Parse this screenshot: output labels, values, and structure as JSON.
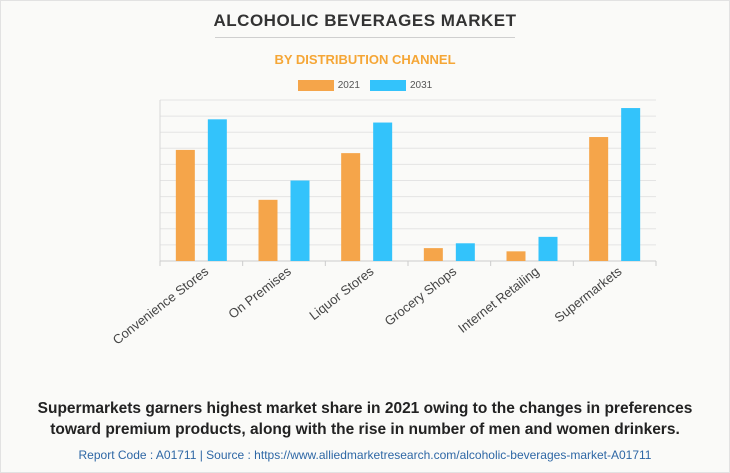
{
  "title": "ALCOHOLIC BEVERAGES MARKET",
  "subtitle": "BY DISTRIBUTION CHANNEL",
  "colors": {
    "series_2021": "#f5a54a",
    "series_2031": "#33c3fb",
    "subtitle": "#f5a636",
    "footer": "#2e67a5"
  },
  "chart_data": {
    "type": "bar",
    "categories": [
      "Convenience Stores",
      "On Premises",
      "Liquor Stores",
      "Grocery Shops",
      "Internet Retailing",
      "Supermarkets"
    ],
    "series": [
      {
        "name": "2021",
        "values": [
          69,
          38,
          67,
          8,
          6,
          77
        ]
      },
      {
        "name": "2031",
        "values": [
          88,
          50,
          86,
          11,
          15,
          95
        ]
      }
    ],
    "ylim": [
      0,
      100
    ],
    "grid": true,
    "legend": "top-center",
    "y_tick_labels_visible": false
  },
  "caption": {
    "line1": "Supermarkets garners highest market share in 2021 owing to the changes in preferences",
    "line2": "toward premium products, along with the rise in number of men and women drinkers."
  },
  "footer": "Report Code : A01711  |  Source : https://www.alliedmarketresearch.com/alcoholic-beverages-market-A01711"
}
